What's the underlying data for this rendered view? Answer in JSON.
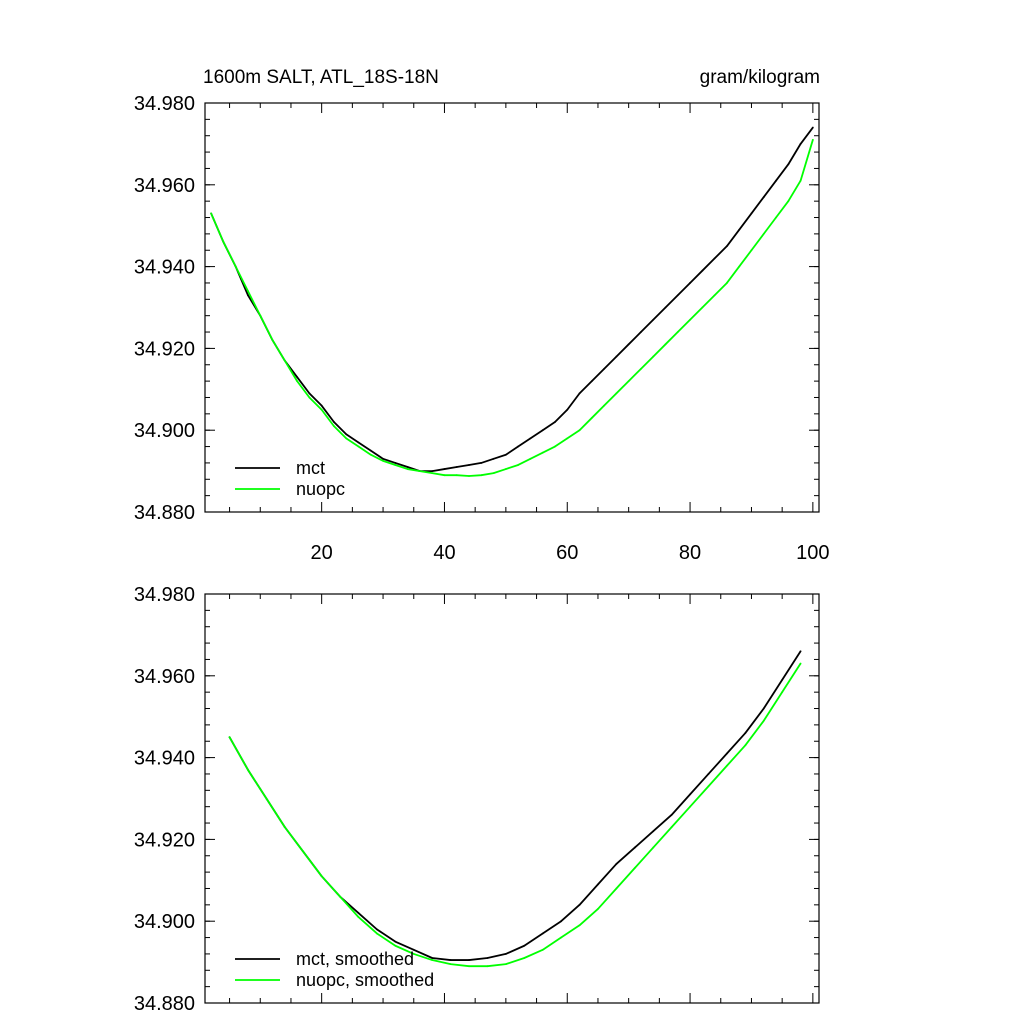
{
  "chart_data": [
    {
      "type": "line",
      "title": "1600m SALT, ATL_18S-18N",
      "units": "gram/kilogram",
      "xlim": [
        1,
        101
      ],
      "ylim": [
        34.88,
        34.98
      ],
      "xticks": [
        20,
        40,
        60,
        80,
        100
      ],
      "xtick_labels": [
        "20",
        "40",
        "60",
        "80",
        "100"
      ],
      "yticks": [
        34.88,
        34.9,
        34.92,
        34.94,
        34.96,
        34.98
      ],
      "ytick_labels": [
        "34.880",
        "34.900",
        "34.920",
        "34.940",
        "34.960",
        "34.980"
      ],
      "legend": "bottom-left",
      "series": [
        {
          "name": "mct",
          "color": "#000000",
          "x": [
            2,
            4,
            6,
            8,
            10,
            12,
            14,
            16,
            18,
            20,
            22,
            24,
            26,
            28,
            30,
            32,
            34,
            36,
            38,
            40,
            42,
            44,
            46,
            48,
            50,
            52,
            54,
            56,
            58,
            60,
            62,
            64,
            66,
            68,
            70,
            72,
            74,
            76,
            78,
            80,
            82,
            84,
            86,
            88,
            90,
            92,
            94,
            96,
            98,
            100
          ],
          "y": [
            34.953,
            34.946,
            34.94,
            34.933,
            34.928,
            34.922,
            34.917,
            34.913,
            34.909,
            34.906,
            34.902,
            34.899,
            34.897,
            34.895,
            34.893,
            34.892,
            34.891,
            34.89,
            34.89,
            34.8905,
            34.891,
            34.8915,
            34.892,
            34.893,
            34.894,
            34.896,
            34.898,
            34.9,
            34.902,
            34.905,
            34.909,
            34.912,
            34.915,
            34.918,
            34.921,
            34.924,
            34.927,
            34.93,
            34.933,
            34.936,
            34.939,
            34.942,
            34.945,
            34.949,
            34.953,
            34.957,
            34.961,
            34.965,
            34.97,
            34.974
          ]
        },
        {
          "name": "nuopc",
          "color": "#00ff00",
          "x": [
            2,
            4,
            6,
            8,
            10,
            12,
            14,
            16,
            18,
            20,
            22,
            24,
            26,
            28,
            30,
            32,
            34,
            36,
            38,
            40,
            42,
            44,
            46,
            48,
            50,
            52,
            54,
            56,
            58,
            60,
            62,
            64,
            66,
            68,
            70,
            72,
            74,
            76,
            78,
            80,
            82,
            84,
            86,
            88,
            90,
            92,
            94,
            96,
            98,
            100
          ],
          "y": [
            34.953,
            34.946,
            34.94,
            34.934,
            34.928,
            34.922,
            34.917,
            34.912,
            34.908,
            34.905,
            34.901,
            34.898,
            34.896,
            34.894,
            34.8925,
            34.8915,
            34.8905,
            34.89,
            34.8895,
            34.889,
            34.889,
            34.8888,
            34.889,
            34.8895,
            34.8905,
            34.8915,
            34.893,
            34.8945,
            34.896,
            34.898,
            34.9,
            34.903,
            34.906,
            34.909,
            34.912,
            34.915,
            34.918,
            34.921,
            34.924,
            34.927,
            34.93,
            34.933,
            34.936,
            34.94,
            34.944,
            34.948,
            34.952,
            34.956,
            34.961,
            34.971
          ]
        }
      ]
    },
    {
      "type": "line",
      "title": "",
      "xlim": [
        1,
        101
      ],
      "ylim": [
        34.88,
        34.98
      ],
      "xticks": [
        20,
        40,
        60,
        80,
        100
      ],
      "yticks": [
        34.88,
        34.9,
        34.92,
        34.94,
        34.96,
        34.98
      ],
      "ytick_labels": [
        "34.880",
        "34.900",
        "34.920",
        "34.940",
        "34.960",
        "34.980"
      ],
      "legend": "bottom-left",
      "series": [
        {
          "name": "mct, smoothed",
          "color": "#000000",
          "x": [
            5,
            8,
            11,
            14,
            17,
            20,
            23,
            26,
            29,
            32,
            35,
            38,
            41,
            44,
            47,
            50,
            53,
            56,
            59,
            62,
            65,
            68,
            71,
            74,
            77,
            80,
            83,
            86,
            89,
            92,
            95,
            98
          ],
          "y": [
            34.945,
            34.937,
            34.93,
            34.923,
            34.917,
            34.911,
            34.906,
            34.902,
            34.898,
            34.895,
            34.893,
            34.891,
            34.8905,
            34.8905,
            34.891,
            34.892,
            34.894,
            34.897,
            34.9,
            34.904,
            34.909,
            34.914,
            34.918,
            34.922,
            34.926,
            34.931,
            34.936,
            34.941,
            34.946,
            34.952,
            34.959,
            34.966
          ]
        },
        {
          "name": "nuopc, smoothed",
          "color": "#00ff00",
          "x": [
            5,
            8,
            11,
            14,
            17,
            20,
            23,
            26,
            29,
            32,
            35,
            38,
            41,
            44,
            47,
            50,
            53,
            56,
            59,
            62,
            65,
            68,
            71,
            74,
            77,
            80,
            83,
            86,
            89,
            92,
            95,
            98
          ],
          "y": [
            34.945,
            34.937,
            34.93,
            34.923,
            34.917,
            34.911,
            34.906,
            34.901,
            34.897,
            34.894,
            34.892,
            34.8905,
            34.8895,
            34.889,
            34.889,
            34.8895,
            34.891,
            34.893,
            34.896,
            34.899,
            34.903,
            34.908,
            34.913,
            34.918,
            34.923,
            34.928,
            34.933,
            34.938,
            34.943,
            34.949,
            34.956,
            34.963
          ]
        }
      ]
    }
  ]
}
